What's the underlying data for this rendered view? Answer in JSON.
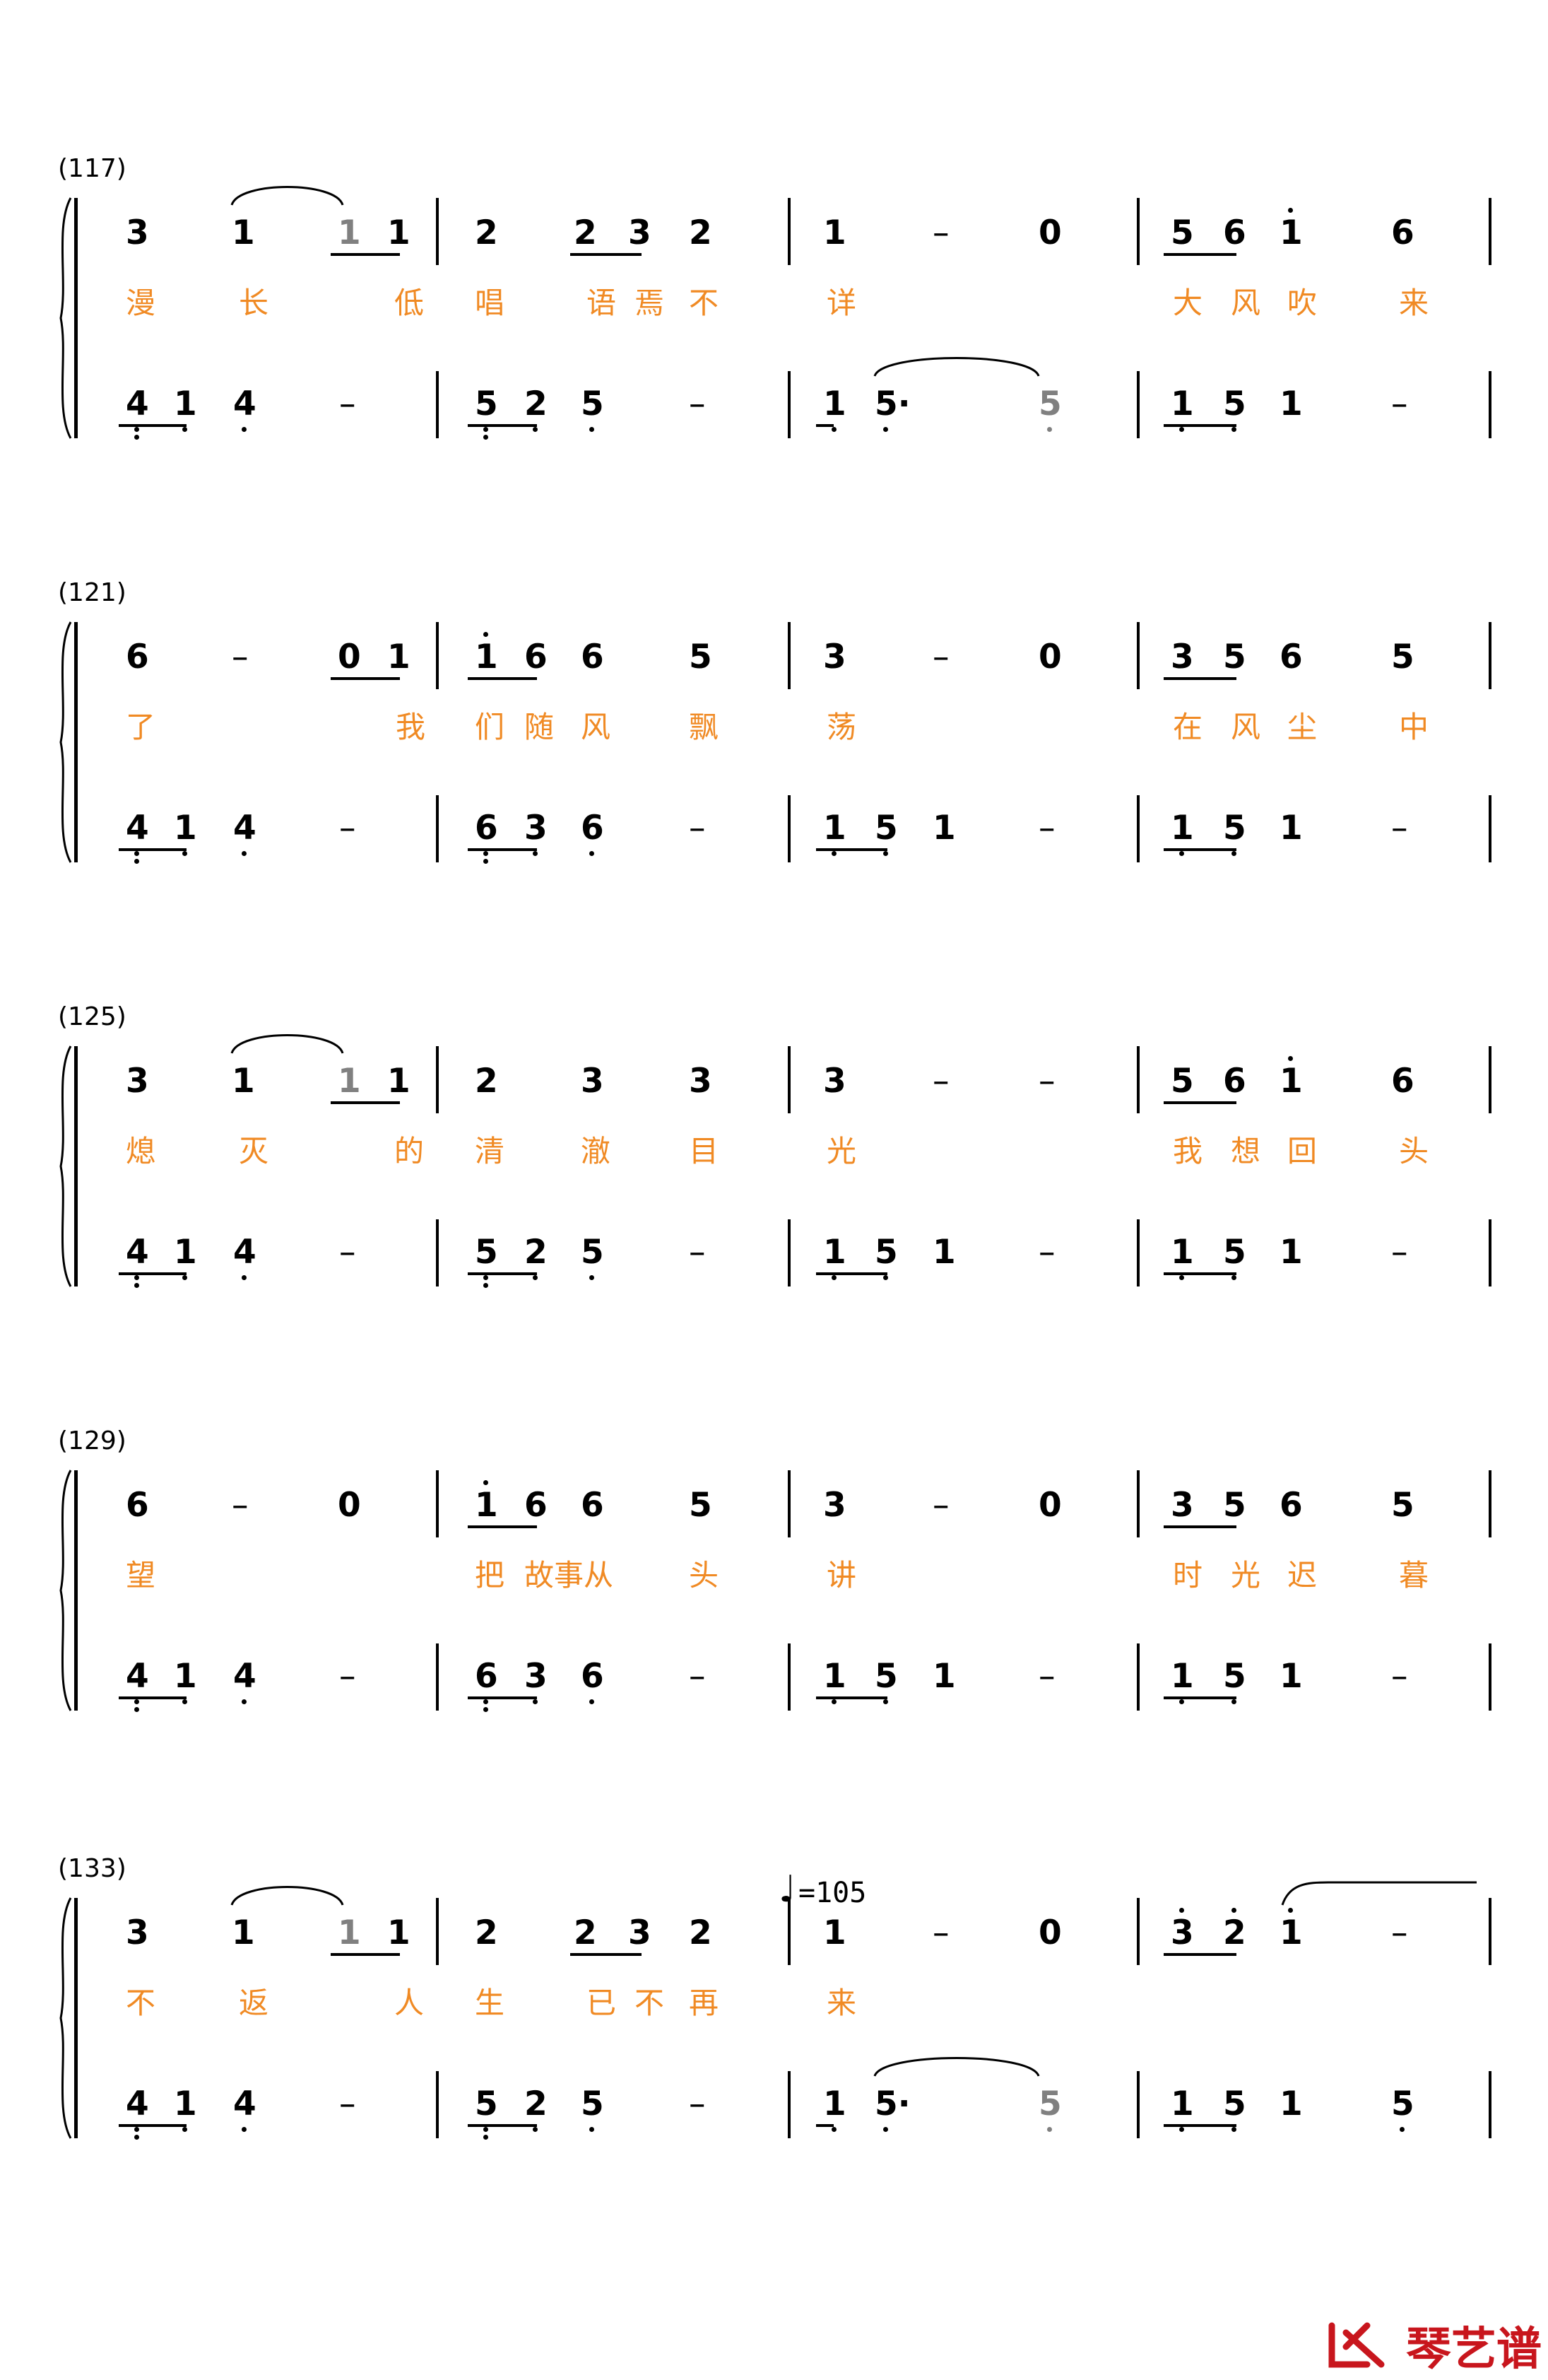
{
  "score": {
    "systems": [
      {
        "label": "(117)",
        "melody": [
          [
            {
              "n": "3"
            },
            {
              "n": "1"
            },
            {
              "n": "1",
              "grey": true
            },
            {
              "n": "1"
            }
          ],
          [
            {
              "n": "2"
            },
            {
              "n": "2"
            },
            {
              "n": "3"
            },
            {
              "n": "2"
            }
          ],
          [
            {
              "n": "1"
            },
            {
              "n": "–"
            },
            {
              "n": "0"
            }
          ],
          [
            {
              "n": "5"
            },
            {
              "n": "6"
            },
            {
              "n": "1",
              "hi": 1
            },
            {
              "n": "6"
            }
          ]
        ],
        "lyrics": [
          [
            "漫",
            "长",
            "低"
          ],
          [
            "唱",
            "语",
            "焉",
            "不"
          ],
          [
            "详"
          ],
          [
            "大",
            "风",
            "吹",
            "来"
          ]
        ],
        "bass": [
          [
            {
              "n": "4",
              "lo": 2
            },
            {
              "n": "1",
              "lo": 1
            },
            {
              "n": "4",
              "lo": 1
            },
            {
              "n": "–"
            }
          ],
          [
            {
              "n": "5",
              "lo": 2
            },
            {
              "n": "2",
              "lo": 1
            },
            {
              "n": "5",
              "lo": 1
            },
            {
              "n": "–"
            }
          ],
          [
            {
              "n": "1",
              "lo": 1
            },
            {
              "n": "5·",
              "lo": 1
            },
            {
              "n": "5",
              "lo": 1,
              "grey": true
            }
          ],
          [
            {
              "n": "1",
              "lo": 1
            },
            {
              "n": "5",
              "lo": 1
            },
            {
              "n": "1"
            },
            {
              "n": "–"
            }
          ]
        ]
      },
      {
        "label": "(121)",
        "melody": [
          [
            {
              "n": "6"
            },
            {
              "n": "–"
            },
            {
              "n": "0"
            },
            {
              "n": "1"
            }
          ],
          [
            {
              "n": "1",
              "hi": 1
            },
            {
              "n": "6"
            },
            {
              "n": "6"
            },
            {
              "n": "5"
            }
          ],
          [
            {
              "n": "3"
            },
            {
              "n": "–"
            },
            {
              "n": "0"
            }
          ],
          [
            {
              "n": "3"
            },
            {
              "n": "5"
            },
            {
              "n": "6"
            },
            {
              "n": "5"
            }
          ]
        ],
        "lyrics": [
          [
            "了",
            "我"
          ],
          [
            "们",
            "随",
            "风",
            "飘"
          ],
          [
            "荡"
          ],
          [
            "在",
            "风",
            "尘",
            "中"
          ]
        ],
        "bass": [
          [
            {
              "n": "4",
              "lo": 2
            },
            {
              "n": "1",
              "lo": 1
            },
            {
              "n": "4",
              "lo": 1
            },
            {
              "n": "–"
            }
          ],
          [
            {
              "n": "6",
              "lo": 2
            },
            {
              "n": "3",
              "lo": 1
            },
            {
              "n": "6",
              "lo": 1
            },
            {
              "n": "–"
            }
          ],
          [
            {
              "n": "1",
              "lo": 1
            },
            {
              "n": "5",
              "lo": 1
            },
            {
              "n": "1"
            },
            {
              "n": "–"
            }
          ],
          [
            {
              "n": "1",
              "lo": 1
            },
            {
              "n": "5",
              "lo": 1
            },
            {
              "n": "1"
            },
            {
              "n": "–"
            }
          ]
        ]
      },
      {
        "label": "(125)",
        "melody": [
          [
            {
              "n": "3"
            },
            {
              "n": "1"
            },
            {
              "n": "1",
              "grey": true
            },
            {
              "n": "1"
            }
          ],
          [
            {
              "n": "2"
            },
            {
              "n": "3"
            },
            {
              "n": "3"
            }
          ],
          [
            {
              "n": "3"
            },
            {
              "n": "–"
            },
            {
              "n": "–"
            }
          ],
          [
            {
              "n": "5"
            },
            {
              "n": "6"
            },
            {
              "n": "1",
              "hi": 1
            },
            {
              "n": "6"
            }
          ]
        ],
        "lyrics": [
          [
            "熄",
            "灭",
            "的"
          ],
          [
            "清",
            "澈",
            "目"
          ],
          [
            "光"
          ],
          [
            "我",
            "想",
            "回",
            "头"
          ]
        ],
        "bass": [
          [
            {
              "n": "4",
              "lo": 2
            },
            {
              "n": "1",
              "lo": 1
            },
            {
              "n": "4",
              "lo": 1
            },
            {
              "n": "–"
            }
          ],
          [
            {
              "n": "5",
              "lo": 2
            },
            {
              "n": "2",
              "lo": 1
            },
            {
              "n": "5",
              "lo": 1
            },
            {
              "n": "–"
            }
          ],
          [
            {
              "n": "1",
              "lo": 1
            },
            {
              "n": "5",
              "lo": 1
            },
            {
              "n": "1"
            },
            {
              "n": "–"
            }
          ],
          [
            {
              "n": "1",
              "lo": 1
            },
            {
              "n": "5",
              "lo": 1
            },
            {
              "n": "1"
            },
            {
              "n": "–"
            }
          ]
        ]
      },
      {
        "label": "(129)",
        "melody": [
          [
            {
              "n": "6"
            },
            {
              "n": "–"
            },
            {
              "n": "0"
            }
          ],
          [
            {
              "n": "1",
              "hi": 1
            },
            {
              "n": "6"
            },
            {
              "n": "6"
            },
            {
              "n": "5"
            }
          ],
          [
            {
              "n": "3"
            },
            {
              "n": "–"
            },
            {
              "n": "0"
            }
          ],
          [
            {
              "n": "3"
            },
            {
              "n": "5"
            },
            {
              "n": "6"
            },
            {
              "n": "5"
            }
          ]
        ],
        "lyrics": [
          [
            "望"
          ],
          [
            "把",
            "故事从",
            "头"
          ],
          [
            "讲"
          ],
          [
            "时",
            "光",
            "迟",
            "暮"
          ]
        ],
        "bass": [
          [
            {
              "n": "4",
              "lo": 2
            },
            {
              "n": "1",
              "lo": 1
            },
            {
              "n": "4",
              "lo": 1
            },
            {
              "n": "–"
            }
          ],
          [
            {
              "n": "6",
              "lo": 2
            },
            {
              "n": "3",
              "lo": 1
            },
            {
              "n": "6",
              "lo": 1
            },
            {
              "n": "–"
            }
          ],
          [
            {
              "n": "1",
              "lo": 1
            },
            {
              "n": "5",
              "lo": 1
            },
            {
              "n": "1"
            },
            {
              "n": "–"
            }
          ],
          [
            {
              "n": "1",
              "lo": 1
            },
            {
              "n": "5",
              "lo": 1
            },
            {
              "n": "1"
            },
            {
              "n": "–"
            }
          ]
        ]
      },
      {
        "label": "(133)",
        "tempo": "=105",
        "melody": [
          [
            {
              "n": "3"
            },
            {
              "n": "1"
            },
            {
              "n": "1",
              "grey": true
            },
            {
              "n": "1"
            }
          ],
          [
            {
              "n": "2"
            },
            {
              "n": "2"
            },
            {
              "n": "3"
            },
            {
              "n": "2"
            }
          ],
          [
            {
              "n": "1"
            },
            {
              "n": "–"
            },
            {
              "n": "0"
            }
          ],
          [
            {
              "n": "3",
              "hi": 1
            },
            {
              "n": "2",
              "hi": 1
            },
            {
              "n": "1",
              "hi": 1
            },
            {
              "n": "–"
            }
          ]
        ],
        "lyrics": [
          [
            "不",
            "返",
            "人"
          ],
          [
            "生",
            "已",
            "不",
            "再"
          ],
          [
            "来"
          ],
          []
        ],
        "bass": [
          [
            {
              "n": "4",
              "lo": 2
            },
            {
              "n": "1",
              "lo": 1
            },
            {
              "n": "4",
              "lo": 1
            },
            {
              "n": "–"
            }
          ],
          [
            {
              "n": "5",
              "lo": 2
            },
            {
              "n": "2",
              "lo": 1
            },
            {
              "n": "5",
              "lo": 1
            },
            {
              "n": "–"
            }
          ],
          [
            {
              "n": "1",
              "lo": 1
            },
            {
              "n": "5·",
              "lo": 1
            },
            {
              "n": "5",
              "lo": 1,
              "grey": true
            }
          ],
          [
            {
              "n": "1",
              "lo": 1
            },
            {
              "n": "5",
              "lo": 1
            },
            {
              "n": "1"
            },
            {
              "n": "5",
              "lo": 1
            }
          ]
        ]
      }
    ]
  },
  "watermark": {
    "text": "琴艺谱",
    "color": "#c8161d"
  }
}
